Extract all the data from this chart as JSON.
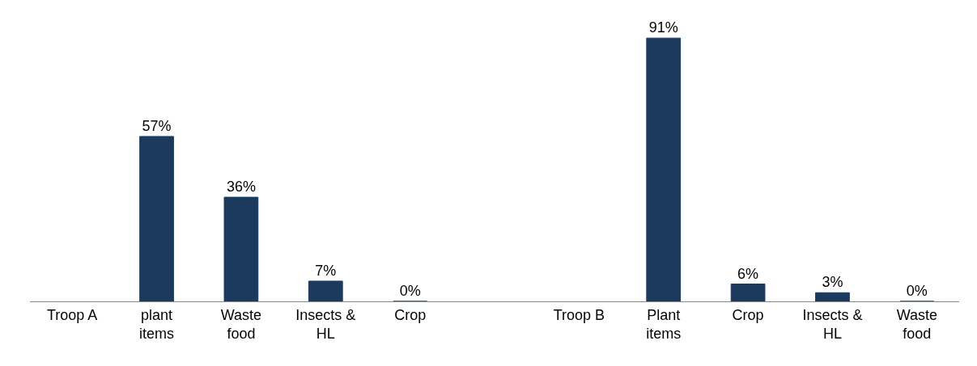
{
  "chart_data": {
    "type": "bar",
    "categories": [
      "Troop A",
      "plant items",
      "Waste food",
      "Insects & HL",
      "Crop",
      null,
      "Troop B",
      "Plant items",
      "Crop",
      "Insects & HL",
      "Waste food"
    ],
    "values": [
      null,
      57,
      36,
      7,
      0,
      null,
      null,
      91,
      6,
      3,
      0
    ],
    "value_labels": [
      null,
      "57%",
      "36%",
      "7%",
      "0%",
      null,
      null,
      "91%",
      "6%",
      "3%",
      "0%"
    ],
    "color": "#1b3a5e"
  }
}
